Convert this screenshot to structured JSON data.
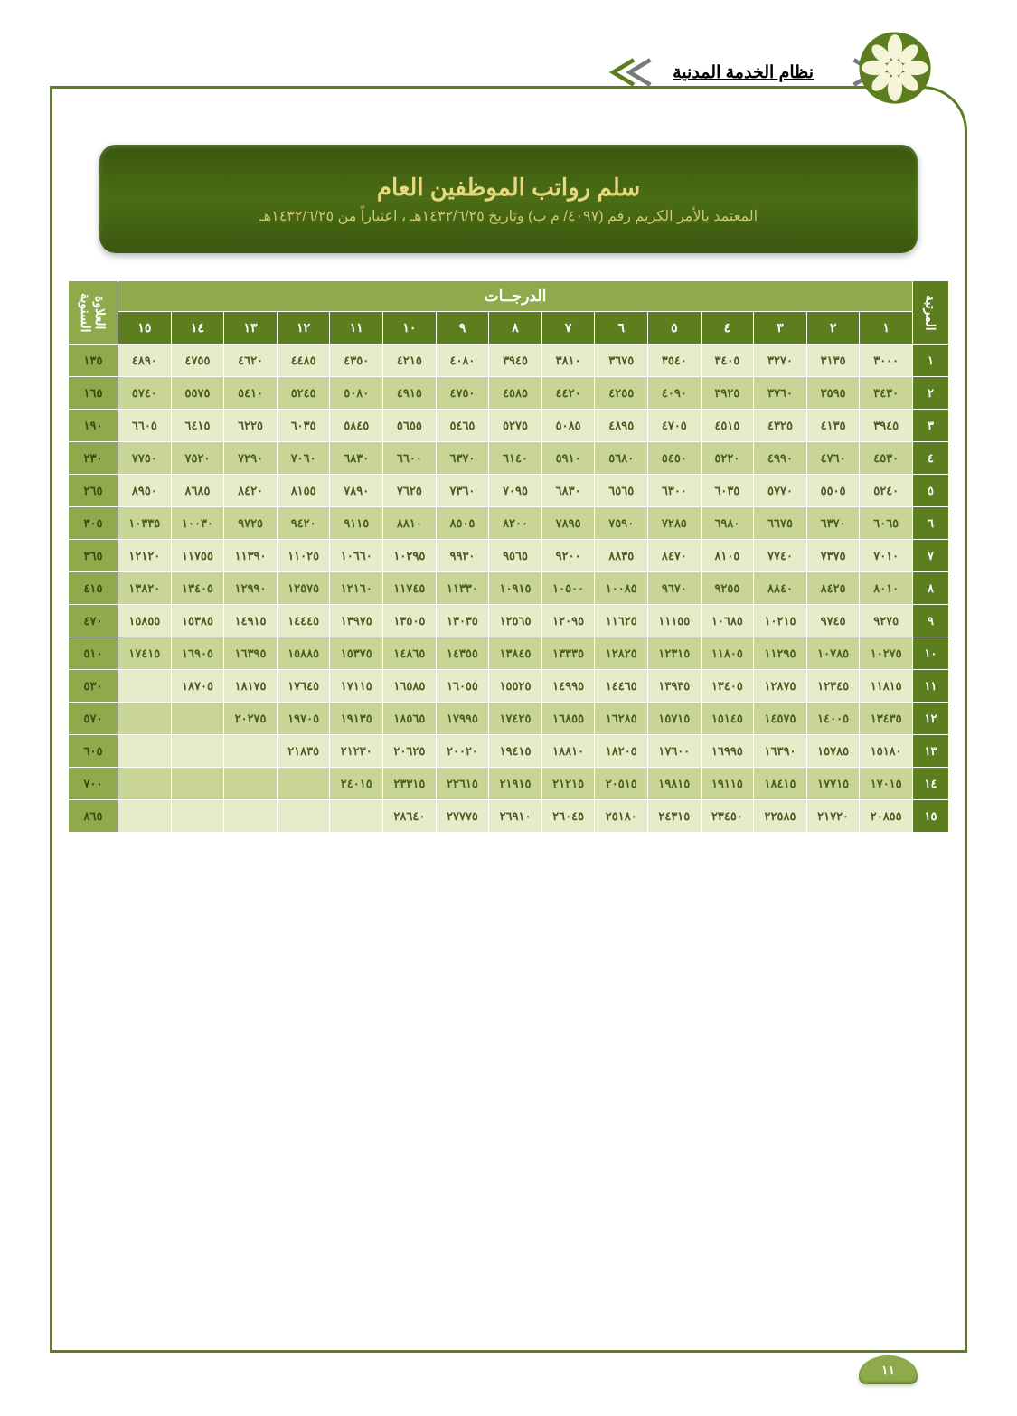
{
  "header": {
    "system_title": "نظام الخدمة المدنية"
  },
  "banner": {
    "title": "سلم رواتب الموظفين العام",
    "subtitle": "المعتمد بالأمر الكريم رقم (٤٠٩٧/ م ب) وتاريخ ١٤٣٢/٦/٢٥هـ ، اعتباراً من ١٤٣٢/٦/٢٥هـ"
  },
  "table": {
    "rank_header": "المرتبة",
    "degrees_header": "الدرجــات",
    "bonus_header": "العلاوة السنوية",
    "degree_labels": [
      "١",
      "٢",
      "٣",
      "٤",
      "٥",
      "٦",
      "٧",
      "٨",
      "٩",
      "١٠",
      "١١",
      "١٢",
      "١٣",
      "١٤",
      "١٥"
    ],
    "rows": [
      {
        "rank": "١",
        "bonus": "١٣٥",
        "cells": [
          "٣٠٠٠",
          "٣١٣٥",
          "٣٢٧٠",
          "٣٤٠٥",
          "٣٥٤٠",
          "٣٦٧٥",
          "٣٨١٠",
          "٣٩٤٥",
          "٤٠٨٠",
          "٤٢١٥",
          "٤٣٥٠",
          "٤٤٨٥",
          "٤٦٢٠",
          "٤٧٥٥",
          "٤٨٩٠"
        ]
      },
      {
        "rank": "٢",
        "bonus": "١٦٥",
        "cells": [
          "٣٤٣٠",
          "٣٥٩٥",
          "٣٧٦٠",
          "٣٩٢٥",
          "٤٠٩٠",
          "٤٢٥٥",
          "٤٤٢٠",
          "٤٥٨٥",
          "٤٧٥٠",
          "٤٩١٥",
          "٥٠٨٠",
          "٥٢٤٥",
          "٥٤١٠",
          "٥٥٧٥",
          "٥٧٤٠"
        ]
      },
      {
        "rank": "٣",
        "bonus": "١٩٠",
        "cells": [
          "٣٩٤٥",
          "٤١٣٥",
          "٤٣٢٥",
          "٤٥١٥",
          "٤٧٠٥",
          "٤٨٩٥",
          "٥٠٨٥",
          "٥٢٧٥",
          "٥٤٦٥",
          "٥٦٥٥",
          "٥٨٤٥",
          "٦٠٣٥",
          "٦٢٢٥",
          "٦٤١٥",
          "٦٦٠٥"
        ]
      },
      {
        "rank": "٤",
        "bonus": "٢٣٠",
        "cells": [
          "٤٥٣٠",
          "٤٧٦٠",
          "٤٩٩٠",
          "٥٢٢٠",
          "٥٤٥٠",
          "٥٦٨٠",
          "٥٩١٠",
          "٦١٤٠",
          "٦٣٧٠",
          "٦٦٠٠",
          "٦٨٣٠",
          "٧٠٦٠",
          "٧٢٩٠",
          "٧٥٢٠",
          "٧٧٥٠"
        ]
      },
      {
        "rank": "٥",
        "bonus": "٢٦٥",
        "cells": [
          "٥٢٤٠",
          "٥٥٠٥",
          "٥٧٧٠",
          "٦٠٣٥",
          "٦٣٠٠",
          "٦٥٦٥",
          "٦٨٣٠",
          "٧٠٩٥",
          "٧٣٦٠",
          "٧٦٢٥",
          "٧٨٩٠",
          "٨١٥٥",
          "٨٤٢٠",
          "٨٦٨٥",
          "٨٩٥٠"
        ]
      },
      {
        "rank": "٦",
        "bonus": "٣٠٥",
        "cells": [
          "٦٠٦٥",
          "٦٣٧٠",
          "٦٦٧٥",
          "٦٩٨٠",
          "٧٢٨٥",
          "٧٥٩٠",
          "٧٨٩٥",
          "٨٢٠٠",
          "٨٥٠٥",
          "٨٨١٠",
          "٩١١٥",
          "٩٤٢٠",
          "٩٧٢٥",
          "١٠٠٣٠",
          "١٠٣٣٥"
        ]
      },
      {
        "rank": "٧",
        "bonus": "٣٦٥",
        "cells": [
          "٧٠١٠",
          "٧٣٧٥",
          "٧٧٤٠",
          "٨١٠٥",
          "٨٤٧٠",
          "٨٨٣٥",
          "٩٢٠٠",
          "٩٥٦٥",
          "٩٩٣٠",
          "١٠٢٩٥",
          "١٠٦٦٠",
          "١١٠٢٥",
          "١١٣٩٠",
          "١١٧٥٥",
          "١٢١٢٠"
        ]
      },
      {
        "rank": "٨",
        "bonus": "٤١٥",
        "cells": [
          "٨٠١٠",
          "٨٤٢٥",
          "٨٨٤٠",
          "٩٢٥٥",
          "٩٦٧٠",
          "١٠٠٨٥",
          "١٠٥٠٠",
          "١٠٩١٥",
          "١١٣٣٠",
          "١١٧٤٥",
          "١٢١٦٠",
          "١٢٥٧٥",
          "١٢٩٩٠",
          "١٣٤٠٥",
          "١٣٨٢٠"
        ]
      },
      {
        "rank": "٩",
        "bonus": "٤٧٠",
        "cells": [
          "٩٢٧٥",
          "٩٧٤٥",
          "١٠٢١٥",
          "١٠٦٨٥",
          "١١١٥٥",
          "١١٦٢٥",
          "١٢٠٩٥",
          "١٢٥٦٥",
          "١٣٠٣٥",
          "١٣٥٠٥",
          "١٣٩٧٥",
          "١٤٤٤٥",
          "١٤٩١٥",
          "١٥٣٨٥",
          "١٥٨٥٥"
        ]
      },
      {
        "rank": "١٠",
        "bonus": "٥١٠",
        "cells": [
          "١٠٢٧٥",
          "١٠٧٨٥",
          "١١٢٩٥",
          "١١٨٠٥",
          "١٢٣١٥",
          "١٢٨٢٥",
          "١٣٣٣٥",
          "١٣٨٤٥",
          "١٤٣٥٥",
          "١٤٨٦٥",
          "١٥٣٧٥",
          "١٥٨٨٥",
          "١٦٣٩٥",
          "١٦٩٠٥",
          "١٧٤١٥"
        ]
      },
      {
        "rank": "١١",
        "bonus": "٥٣٠",
        "cells": [
          "١١٨١٥",
          "١٢٣٤٥",
          "١٢٨٧٥",
          "١٣٤٠٥",
          "١٣٩٣٥",
          "١٤٤٦٥",
          "١٤٩٩٥",
          "١٥٥٢٥",
          "١٦٠٥٥",
          "١٦٥٨٥",
          "١٧١١٥",
          "١٧٦٤٥",
          "١٨١٧٥",
          "١٨٧٠٥",
          ""
        ]
      },
      {
        "rank": "١٢",
        "bonus": "٥٧٠",
        "cells": [
          "١٣٤٣٥",
          "١٤٠٠٥",
          "١٤٥٧٥",
          "١٥١٤٥",
          "١٥٧١٥",
          "١٦٢٨٥",
          "١٦٨٥٥",
          "١٧٤٢٥",
          "١٧٩٩٥",
          "١٨٥٦٥",
          "١٩١٣٥",
          "١٩٧٠٥",
          "٢٠٢٧٥",
          "",
          ""
        ]
      },
      {
        "rank": "١٣",
        "bonus": "٦٠٥",
        "cells": [
          "١٥١٨٠",
          "١٥٧٨٥",
          "١٦٣٩٠",
          "١٦٩٩٥",
          "١٧٦٠٠",
          "١٨٢٠٥",
          "١٨٨١٠",
          "١٩٤١٥",
          "٢٠٠٢٠",
          "٢٠٦٢٥",
          "٢١٢٣٠",
          "٢١٨٣٥",
          "",
          "",
          ""
        ]
      },
      {
        "rank": "١٤",
        "bonus": "٧٠٠",
        "cells": [
          "١٧٠١٥",
          "١٧٧١٥",
          "١٨٤١٥",
          "١٩١١٥",
          "١٩٨١٥",
          "٢٠٥١٥",
          "٢١٢١٥",
          "٢١٩١٥",
          "٢٢٦١٥",
          "٢٣٣١٥",
          "٢٤٠١٥",
          "",
          "",
          "",
          ""
        ]
      },
      {
        "rank": "١٥",
        "bonus": "٨٦٥",
        "cells": [
          "٢٠٨٥٥",
          "٢١٧٢٠",
          "٢٢٥٨٥",
          "٢٣٤٥٠",
          "٢٤٣١٥",
          "٢٥١٨٠",
          "٢٦٠٤٥",
          "٢٦٩١٠",
          "٢٧٧٧٥",
          "٢٨٦٤٠",
          "",
          "",
          "",
          "",
          ""
        ]
      }
    ]
  },
  "page_number": "١١",
  "colors": {
    "dark_green": "#5d7e1f",
    "mid_green": "#8faa4a",
    "row_odd": "#e6ecc9",
    "row_even": "#c9d597",
    "banner_text": "#e6d97d",
    "cell_text": "#4a5a20"
  }
}
